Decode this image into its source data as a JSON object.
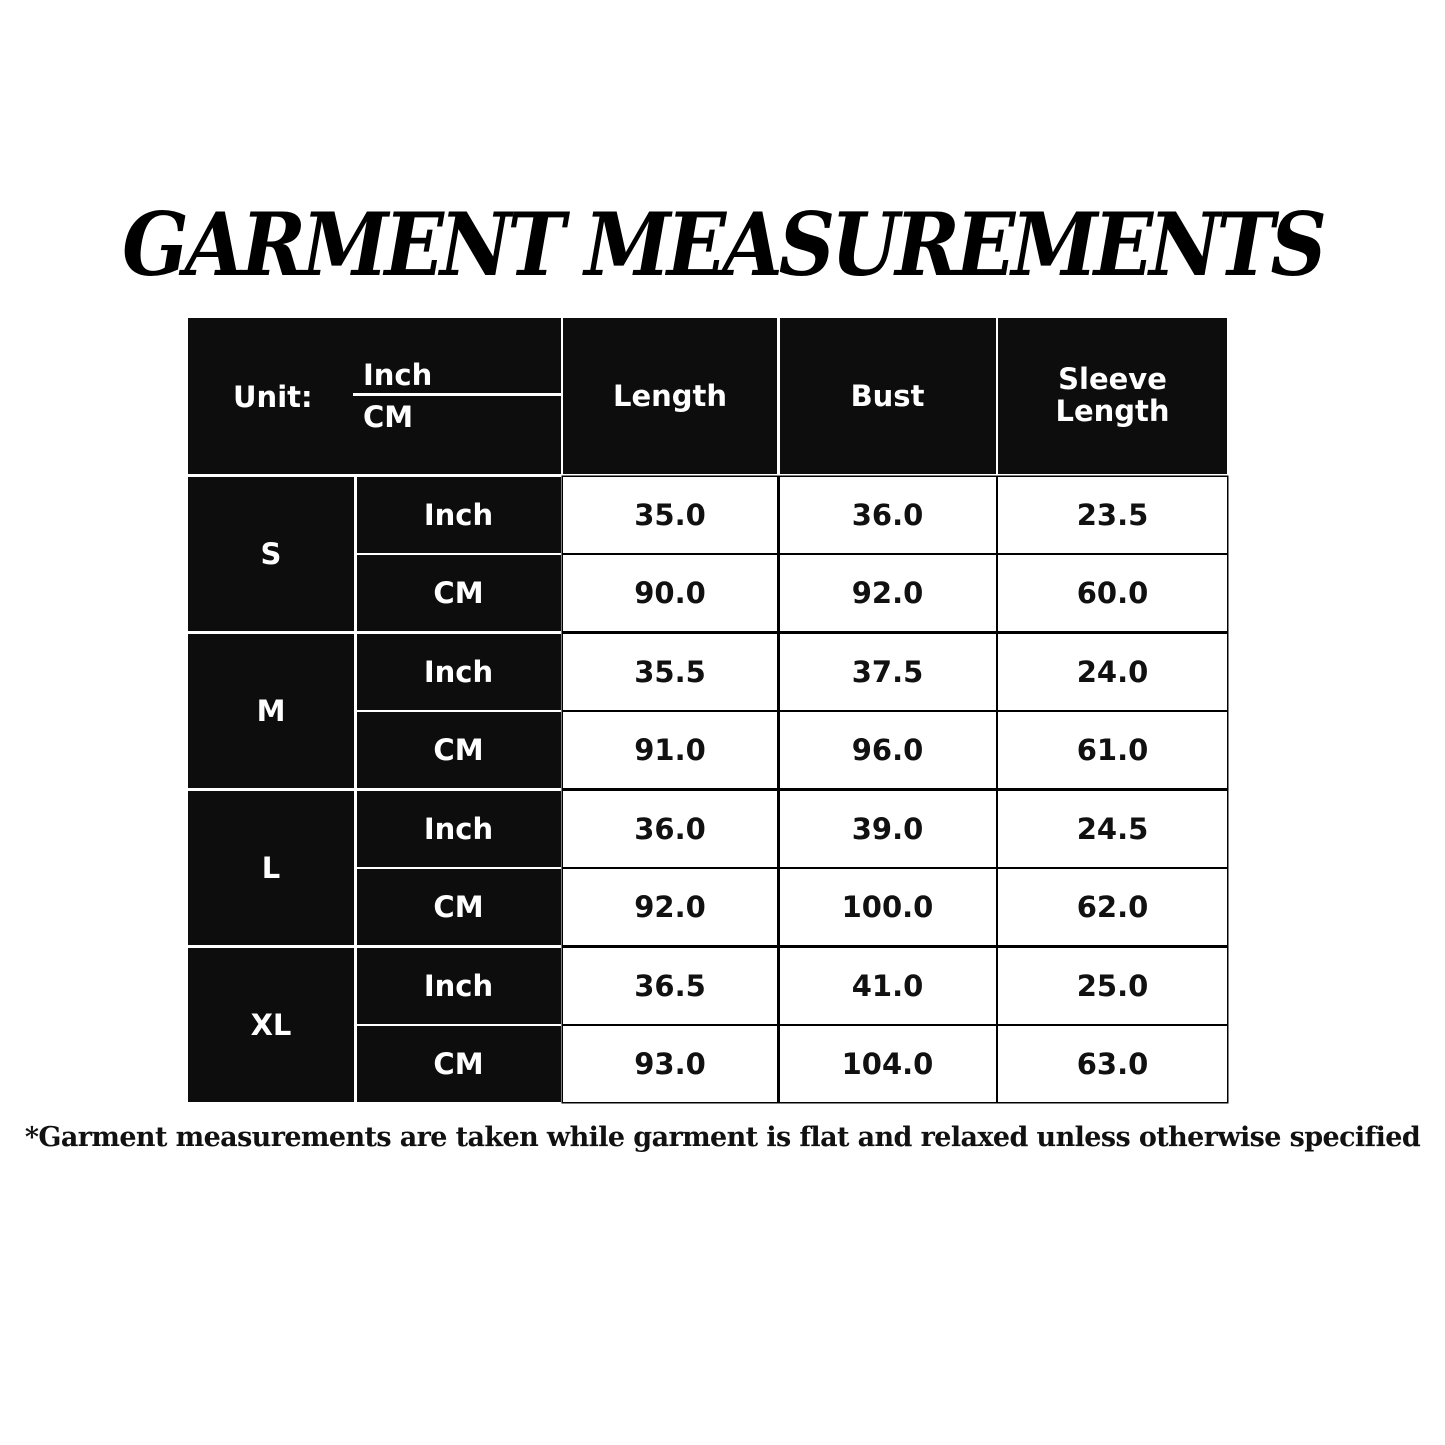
{
  "title": "GARMENT MEASUREMENTS",
  "table": {
    "unit_label": "Unit:",
    "unit_top": "Inch",
    "unit_bottom": "CM",
    "columns": [
      "Length",
      "Bust",
      "Sleeve Length"
    ],
    "sizes": [
      {
        "size": "S",
        "rows": [
          {
            "unit": "Inch",
            "values": [
              "35.0",
              "36.0",
              "23.5"
            ]
          },
          {
            "unit": "CM",
            "values": [
              "90.0",
              "92.0",
              "60.0"
            ]
          }
        ]
      },
      {
        "size": "M",
        "rows": [
          {
            "unit": "Inch",
            "values": [
              "35.5",
              "37.5",
              "24.0"
            ]
          },
          {
            "unit": "CM",
            "values": [
              "91.0",
              "96.0",
              "61.0"
            ]
          }
        ]
      },
      {
        "size": "L",
        "rows": [
          {
            "unit": "Inch",
            "values": [
              "36.0",
              "39.0",
              "24.5"
            ]
          },
          {
            "unit": "CM",
            "values": [
              "92.0",
              "100.0",
              "62.0"
            ]
          }
        ]
      },
      {
        "size": "XL",
        "rows": [
          {
            "unit": "Inch",
            "values": [
              "36.5",
              "41.0",
              "25.0"
            ]
          },
          {
            "unit": "CM",
            "values": [
              "93.0",
              "104.0",
              "63.0"
            ]
          }
        ]
      }
    ]
  },
  "footnote": "*Garment measurements are taken while garment is flat and relaxed unless otherwise specified"
}
